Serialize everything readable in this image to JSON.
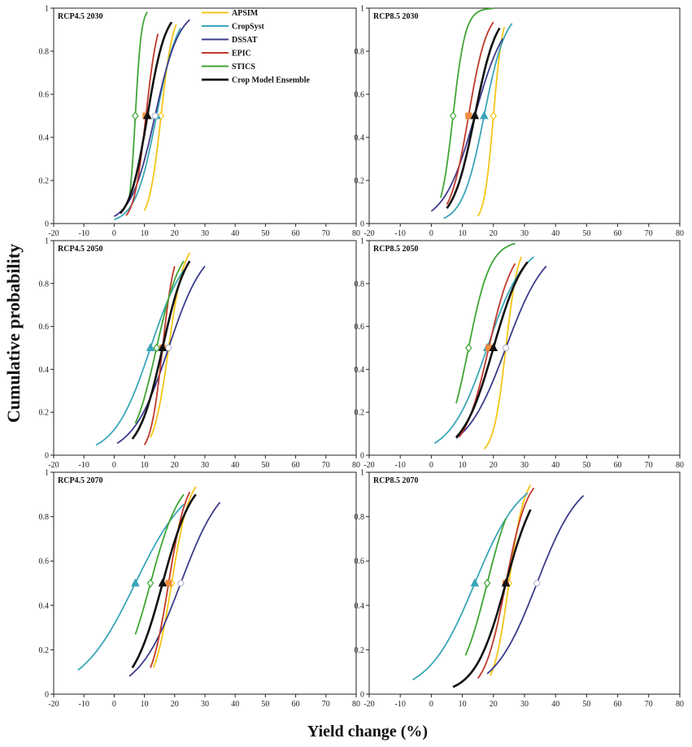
{
  "figure": {
    "ylabel": "Cumulative probability",
    "xlabel": "Yield change (%)"
  },
  "chart_data": {
    "type": "line",
    "xlim": [
      -20,
      80
    ],
    "ylim": [
      0,
      1
    ],
    "xticks": [
      "-20",
      "-10",
      "0",
      "10",
      "20",
      "30",
      "40",
      "50",
      "60",
      "70",
      "80"
    ],
    "yticks": [
      "0",
      "0.2",
      "0.4",
      "0.6",
      "0.8",
      "1"
    ],
    "series_meta": [
      {
        "name": "APSIM",
        "color": "#f5c518",
        "marker": "diamond-open"
      },
      {
        "name": "CropSyst",
        "color": "#3aa6b9",
        "marker": "triangle"
      },
      {
        "name": "DSSAT",
        "color": "#3c3c8c",
        "marker": "circle-open"
      },
      {
        "name": "EPIC",
        "color": "#c0392b",
        "marker": "square"
      },
      {
        "name": "STICS",
        "color": "#3fa535",
        "marker": "diamond-open"
      },
      {
        "name": "Crop Model Ensemble",
        "color": "#111111",
        "marker": "triangle"
      }
    ],
    "panels": [
      {
        "title": "RCP4.5 2030",
        "series": [
          {
            "name": "APSIM",
            "median": 15.5,
            "width": 2.0,
            "xmin": 10,
            "xmax": 20.5
          },
          {
            "name": "CropSyst",
            "median": 14,
            "width": 3.5,
            "xmin": 0,
            "xmax": 22
          },
          {
            "name": "DSSAT",
            "median": 13.5,
            "width": 4.0,
            "xmin": 0,
            "xmax": 25
          },
          {
            "name": "EPIC",
            "median": 10.5,
            "width": 2.0,
            "xmin": 4,
            "xmax": 14.5
          },
          {
            "name": "STICS",
            "median": 7,
            "width": 1.0,
            "xmin": 5,
            "xmax": 11
          },
          {
            "name": "Crop Model Ensemble",
            "median": 11,
            "width": 3.0,
            "xmin": 2,
            "xmax": 19
          }
        ]
      },
      {
        "title": "RCP8.5 2030",
        "series": [
          {
            "name": "APSIM",
            "median": 20,
            "width": 1.5,
            "xmin": 15,
            "xmax": 23.5
          },
          {
            "name": "CropSyst",
            "median": 17,
            "width": 3.5,
            "xmin": 4,
            "xmax": 26
          },
          {
            "name": "DSSAT",
            "median": 14,
            "width": 5.0,
            "xmin": 0,
            "xmax": 23
          },
          {
            "name": "EPIC",
            "median": 12,
            "width": 3.0,
            "xmin": 5,
            "xmax": 20
          },
          {
            "name": "STICS",
            "median": 7,
            "width": 2.0,
            "xmin": 3,
            "xmax": 20
          },
          {
            "name": "Crop Model Ensemble",
            "median": 14,
            "width": 3.5,
            "xmin": 5,
            "xmax": 22
          }
        ]
      },
      {
        "title": "RCP4.5 2050",
        "series": [
          {
            "name": "APSIM",
            "median": 18,
            "width": 2.5,
            "xmin": 12,
            "xmax": 25
          },
          {
            "name": "CropSyst",
            "median": 12,
            "width": 6.0,
            "xmin": -6,
            "xmax": 23
          },
          {
            "name": "DSSAT",
            "median": 18,
            "width": 6.0,
            "xmin": 1,
            "xmax": 30
          },
          {
            "name": "EPIC",
            "median": 16,
            "width": 2.0,
            "xmin": 10,
            "xmax": 20
          },
          {
            "name": "STICS",
            "median": 14,
            "width": 4.0,
            "xmin": 7,
            "xmax": 23
          },
          {
            "name": "Crop Model Ensemble",
            "median": 16,
            "width": 4.0,
            "xmin": 6,
            "xmax": 25
          }
        ]
      },
      {
        "title": "RCP8.5 2050",
        "series": [
          {
            "name": "APSIM",
            "median": 24,
            "width": 2.0,
            "xmin": 17,
            "xmax": 29
          },
          {
            "name": "CropSyst",
            "median": 18,
            "width": 6.0,
            "xmin": 1,
            "xmax": 33
          },
          {
            "name": "DSSAT",
            "median": 24,
            "width": 6.5,
            "xmin": 8,
            "xmax": 37
          },
          {
            "name": "EPIC",
            "median": 18.5,
            "width": 4.0,
            "xmin": 9,
            "xmax": 27
          },
          {
            "name": "STICS",
            "median": 12,
            "width": 3.5,
            "xmin": 8,
            "xmax": 27
          },
          {
            "name": "Crop Model Ensemble",
            "median": 20,
            "width": 5.0,
            "xmin": 8,
            "xmax": 31
          }
        ]
      },
      {
        "title": "RCP4.5 2070",
        "series": [
          {
            "name": "APSIM",
            "median": 19,
            "width": 3.0,
            "xmin": 13,
            "xmax": 27
          },
          {
            "name": "CropSyst",
            "median": 7,
            "width": 9.0,
            "xmin": -12,
            "xmax": 23
          },
          {
            "name": "DSSAT",
            "median": 22,
            "width": 7.0,
            "xmin": 5,
            "xmax": 35
          },
          {
            "name": "EPIC",
            "median": 18,
            "width": 3.0,
            "xmin": 12,
            "xmax": 25
          },
          {
            "name": "STICS",
            "median": 12,
            "width": 5.0,
            "xmin": 7,
            "xmax": 23
          },
          {
            "name": "Crop Model Ensemble",
            "median": 16,
            "width": 5.0,
            "xmin": 6,
            "xmax": 27
          }
        ]
      },
      {
        "title": "RCP8.5 2070",
        "series": [
          {
            "name": "APSIM",
            "median": 25,
            "width": 2.5,
            "xmin": 19,
            "xmax": 32
          },
          {
            "name": "CropSyst",
            "median": 14,
            "width": 7.5,
            "xmin": -6,
            "xmax": 31
          },
          {
            "name": "DSSAT",
            "median": 34,
            "width": 7.0,
            "xmin": 18,
            "xmax": 49
          },
          {
            "name": "EPIC",
            "median": 24,
            "width": 3.5,
            "xmin": 15,
            "xmax": 33
          },
          {
            "name": "STICS",
            "median": 18,
            "width": 4.5,
            "xmin": 11,
            "xmax": 24
          },
          {
            "name": "Crop Model Ensemble",
            "median": 24,
            "width": 5.0,
            "xmin": 7,
            "xmax": 32
          }
        ]
      }
    ]
  }
}
